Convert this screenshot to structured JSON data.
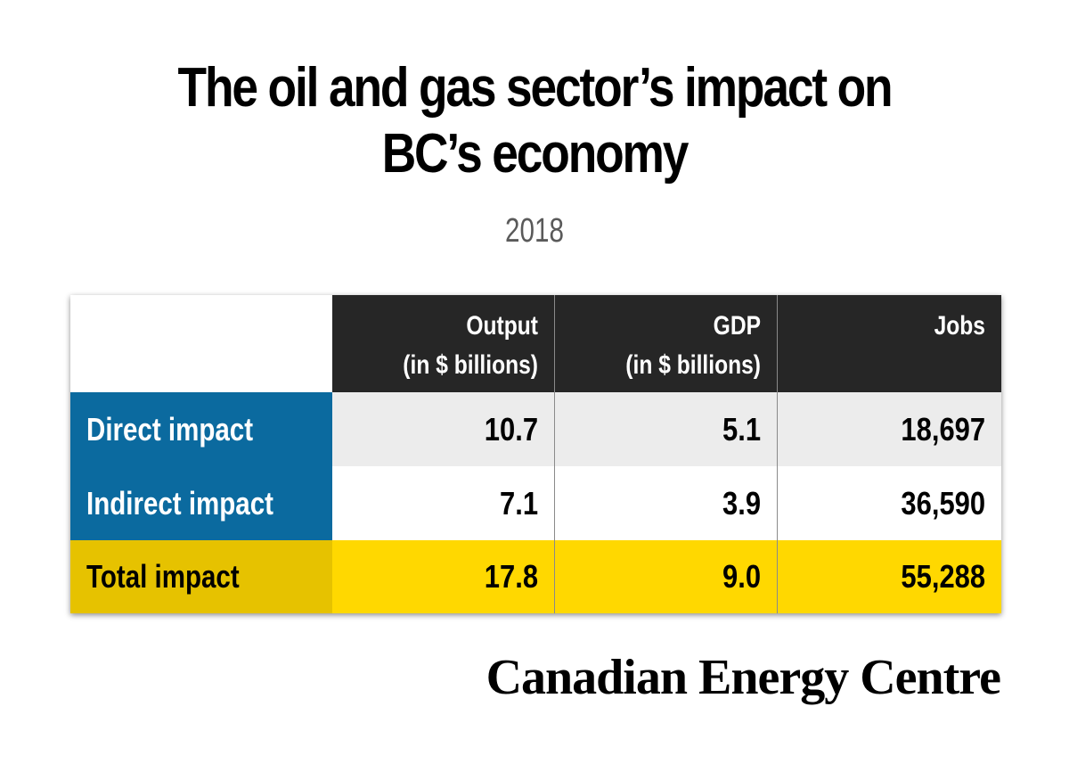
{
  "title_lines": [
    "The oil and gas sector’s impact on",
    "BC’s economy"
  ],
  "subtitle": "2018",
  "chart_data": {
    "type": "table",
    "columns": [
      {
        "name_line1": "Output",
        "name_line2": "(in $ billions)"
      },
      {
        "name_line1": "GDP",
        "name_line2": "(in $ billions)"
      },
      {
        "name_line1": "Jobs",
        "name_line2": ""
      }
    ],
    "rows": [
      {
        "label": "Direct impact",
        "values": [
          "10.7",
          "5.1",
          "18,697"
        ]
      },
      {
        "label": "Indirect impact",
        "values": [
          "7.1",
          "3.9",
          "36,590"
        ]
      },
      {
        "label": "Total impact",
        "values": [
          "17.8",
          "9.0",
          "55,288"
        ]
      }
    ]
  },
  "colors": {
    "header_bg": "#262626",
    "header_text": "#ffffff",
    "row_label_blue": "#0b6a9f",
    "row_label_gold": "#e6c200",
    "row1_bg": "#ececec",
    "row2_bg": "#ffffff",
    "total_row_bg": "#ffd800",
    "label_text_light": "#ffffff",
    "label_text_dark": "#000000"
  },
  "footer_logo": "Canadian Energy Centre"
}
